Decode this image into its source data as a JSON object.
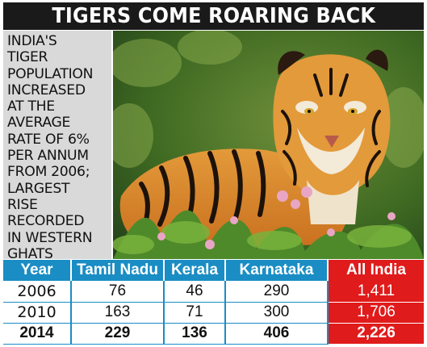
{
  "header": {
    "title": "TIGERS COME ROARING BACK"
  },
  "sidebar": {
    "text": "INDIA'S\nTIGER\nPOPULATION\nINCREASED\nAT THE\nAVERAGE\nRATE OF 6%\nPER ANNUM\nFROM 2006;\nLARGEST\nRISE\nRECORDED\nIN WESTERN\nGHATS"
  },
  "photo": {
    "icon": "tiger-photo"
  },
  "table": {
    "columns": [
      "Year",
      "Tamil Nadu",
      "Kerala",
      "Karnataka",
      "All India"
    ],
    "rows": [
      [
        "2006",
        "76",
        "46",
        "290",
        "1,411"
      ],
      [
        "2010",
        "163",
        "71",
        "300",
        "1,706"
      ],
      [
        "2014",
        "229",
        "136",
        "406",
        "2,226"
      ]
    ]
  },
  "colors": {
    "header_bg": "#1a1a1a",
    "table_header": "#1a8dc4",
    "all_india": "#e01b1b",
    "panel_bg": "#d9d9d9"
  }
}
